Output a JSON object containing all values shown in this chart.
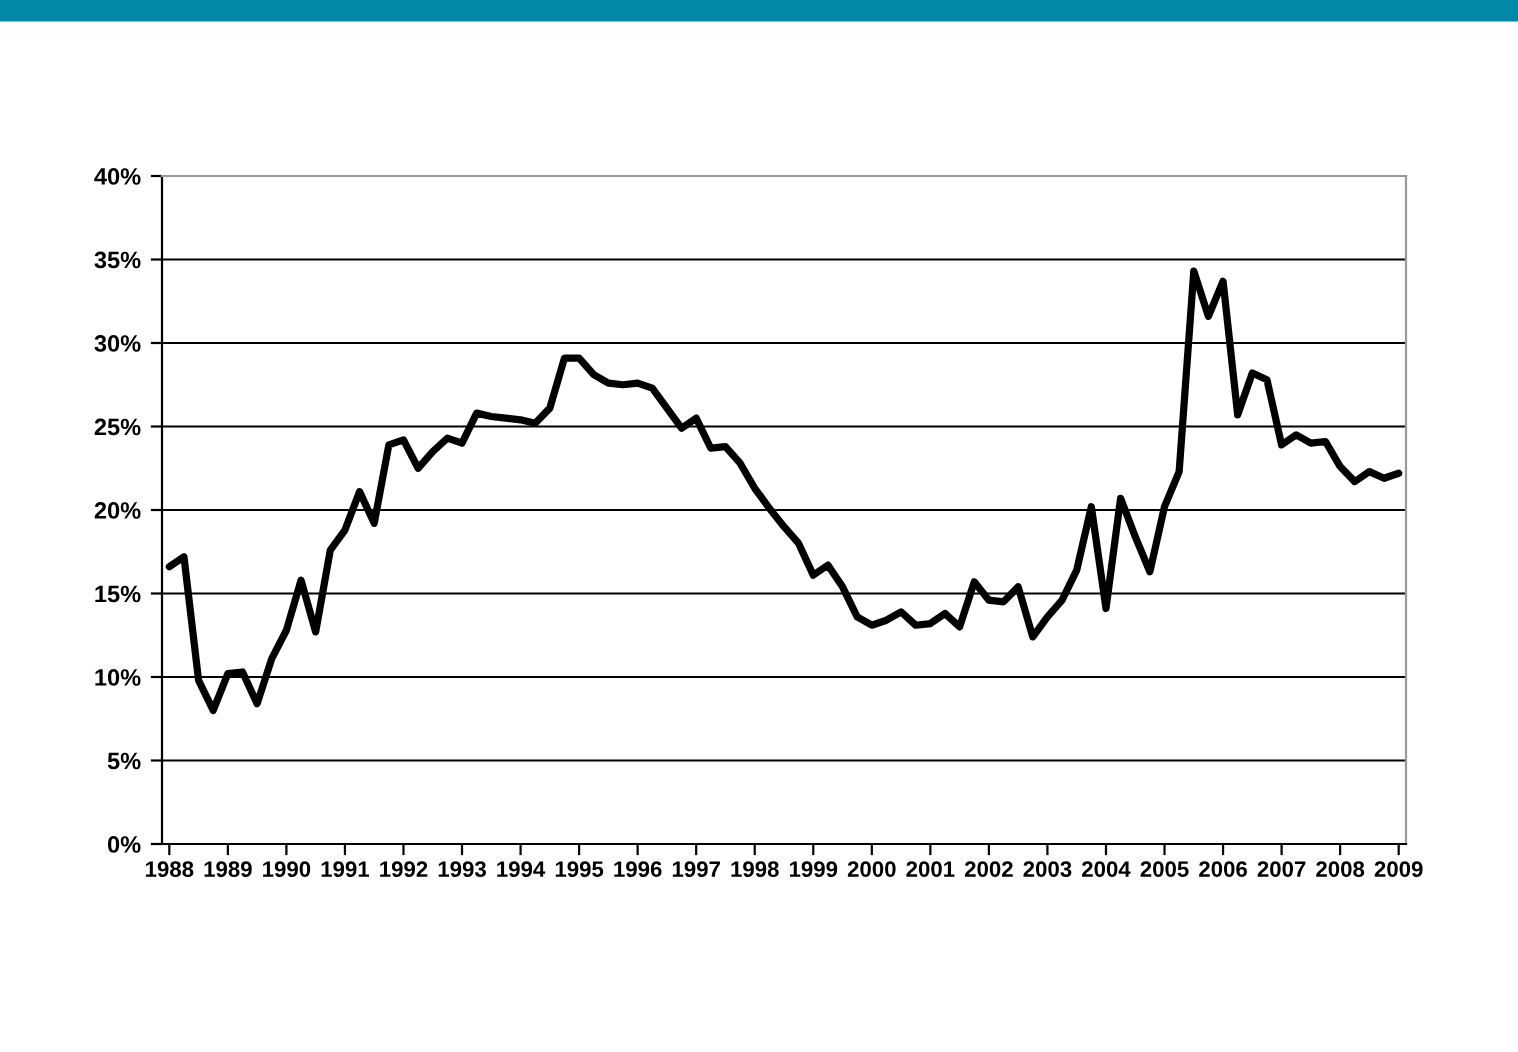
{
  "chart_data": {
    "type": "line",
    "categories": [
      "1988",
      null,
      null,
      null,
      "1989",
      null,
      null,
      null,
      "1990",
      null,
      null,
      null,
      "1991",
      null,
      null,
      null,
      "1992",
      null,
      null,
      null,
      "1993",
      null,
      null,
      null,
      "1994",
      null,
      null,
      null,
      "1995",
      null,
      null,
      null,
      "1996",
      null,
      null,
      null,
      "1997",
      null,
      null,
      null,
      "1998",
      null,
      null,
      null,
      "1999",
      null,
      null,
      null,
      "2000",
      null,
      null,
      null,
      "2001",
      null,
      null,
      null,
      "2002",
      null,
      null,
      null,
      "2003",
      null,
      null,
      null,
      "2004",
      null,
      null,
      null,
      "2005",
      null,
      null,
      null,
      "2006",
      null,
      null,
      null,
      "2007",
      null,
      null,
      null,
      "2008",
      null,
      null,
      null,
      "2009"
    ],
    "series": [
      {
        "color": "#000000",
        "values": [
          16.6,
          17.2,
          9.8,
          8.0,
          10.2,
          10.3,
          8.4,
          11.1,
          12.8,
          15.8,
          12.7,
          17.6,
          18.8,
          21.1,
          19.2,
          23.9,
          24.2,
          22.5,
          23.5,
          24.3,
          24.0,
          25.8,
          25.6,
          25.5,
          25.4,
          25.2,
          26.1,
          29.1,
          29.1,
          28.1,
          27.6,
          27.5,
          27.6,
          27.3,
          26.1,
          24.9,
          25.5,
          23.7,
          23.8,
          22.8,
          21.3,
          20.1,
          19.0,
          18.0,
          16.1,
          16.7,
          15.4,
          13.6,
          13.1,
          13.4,
          13.9,
          13.1,
          13.2,
          13.8,
          13.0,
          15.7,
          14.6,
          14.5,
          15.4,
          12.4,
          13.6,
          14.6,
          16.4,
          20.2,
          14.1,
          20.7,
          18.4,
          16.3,
          20.2,
          22.3,
          34.3,
          31.6,
          33.7,
          25.7,
          28.2,
          27.8,
          23.9,
          24.5,
          24.0,
          24.1,
          22.6,
          21.7,
          22.3,
          21.9,
          22.2
        ]
      }
    ],
    "ylim": [
      0,
      40
    ],
    "yticks": [
      {
        "value": 0,
        "label": "0%"
      },
      {
        "value": 5,
        "label": "5%"
      },
      {
        "value": 10,
        "label": "10%"
      },
      {
        "value": 15,
        "label": "15%"
      },
      {
        "value": 20,
        "label": "20%"
      },
      {
        "value": 25,
        "label": "25%"
      },
      {
        "value": 30,
        "label": "30%"
      },
      {
        "value": 35,
        "label": "35%"
      },
      {
        "value": 40,
        "label": "40%"
      }
    ],
    "grid": "y",
    "marker": "none",
    "line_style": "solid"
  }
}
